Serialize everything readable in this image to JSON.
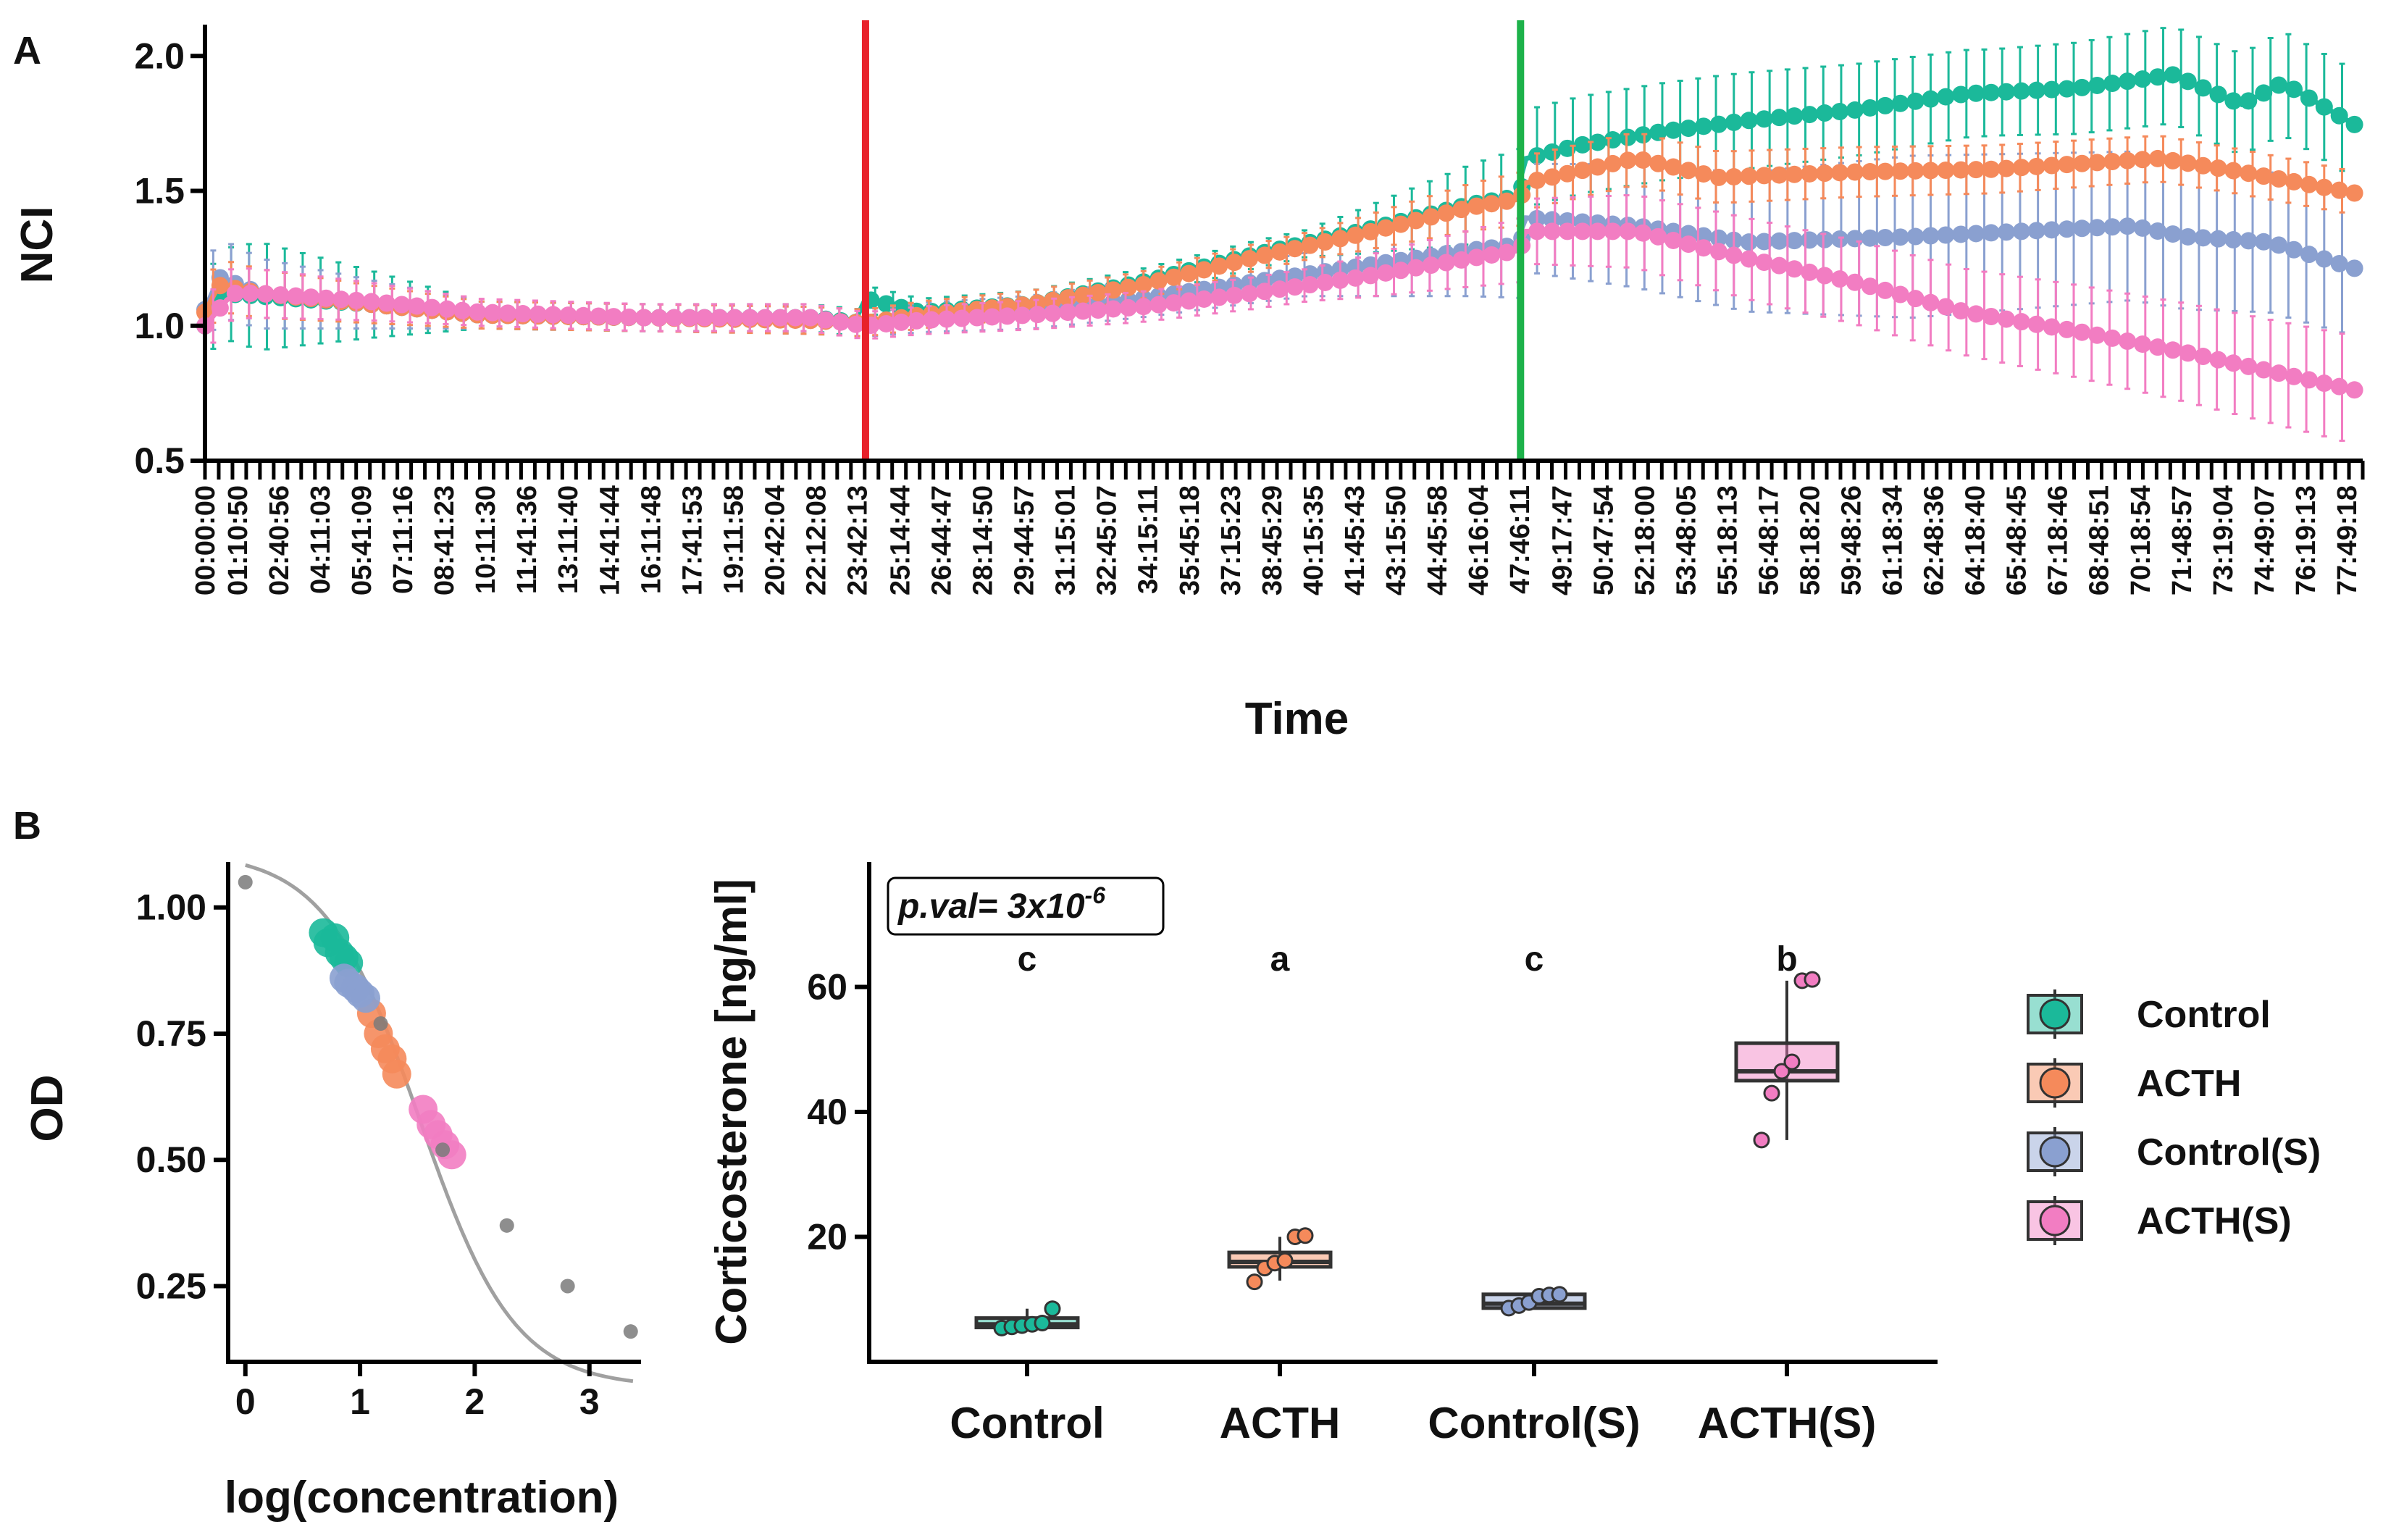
{
  "panel_labels": [
    "A",
    "B"
  ],
  "colors": {
    "Control": "#1bb99a",
    "ACTH": "#f58a5b",
    "Control(S)": "#8aa0d0",
    "ACTH(S)": "#f27dc2",
    "axis": "#000000",
    "treatment_line": "#e8212b",
    "stress_line": "#1db24a",
    "standard": "#7a7a7a",
    "curve": "#a0a0a0"
  },
  "chart_data": [
    {
      "id": "A",
      "type": "line",
      "xlabel": "Time",
      "ylabel": "NCI",
      "ylim": [
        0.5,
        2.1
      ],
      "yticks": [
        0.5,
        1.0,
        1.5,
        2.0
      ],
      "ytick_labels": [
        "0.5",
        "1.0",
        "1.5",
        "2.0"
      ],
      "x_tick_labels": [
        "00:00:00",
        "01:10:50",
        "02:40:56",
        "04:11:03",
        "05:41:09",
        "07:11:16",
        "08:41:23",
        "10:11:30",
        "11:41:36",
        "13:11:40",
        "14:41:44",
        "16:11:48",
        "17:41:53",
        "19:11:58",
        "20:42:04",
        "22:12:08",
        "23:42:13",
        "25:14:44",
        "26:44:47",
        "28:14:50",
        "29:44:57",
        "31:15:01",
        "32:45:07",
        "34:15:11",
        "35:45:18",
        "37:15:23",
        "38:45:29",
        "40:15:35",
        "41:45:43",
        "43:15:50",
        "44:45:58",
        "46:16:04",
        "47:46:11",
        "49:17:47",
        "50:47:54",
        "52:18:00",
        "53:48:05",
        "55:18:13",
        "56:48:17",
        "58:18:20",
        "59:48:26",
        "61:18:34",
        "62:48:36",
        "64:18:40",
        "65:48:45",
        "67:18:46",
        "68:48:51",
        "70:18:54",
        "71:48:57",
        "73:19:04",
        "74:49:07",
        "76:19:13",
        "77:49:18"
      ],
      "x_hours": [
        0,
        1.18,
        2.68,
        4.18,
        5.69,
        7.19,
        8.69,
        10.19,
        11.69,
        13.19,
        14.7,
        16.2,
        17.7,
        19.2,
        20.7,
        22.2,
        23.7,
        25.25,
        26.75,
        28.25,
        29.75,
        31.25,
        32.75,
        34.25,
        35.76,
        37.26,
        38.76,
        40.26,
        41.76,
        43.26,
        44.77,
        46.27,
        47.77,
        49.3,
        50.8,
        52.3,
        53.8,
        55.3,
        56.8,
        58.31,
        59.81,
        61.31,
        62.81,
        64.31,
        65.81,
        67.31,
        68.81,
        70.32,
        71.82,
        73.32,
        74.82,
        76.32,
        77.82
      ],
      "x_range_hours": [
        0,
        78.4
      ],
      "vlines_hours": [
        24.0,
        47.8
      ],
      "series": [
        {
          "name": "Control",
          "points": [
            [
              0,
              1.0
            ],
            [
              0.5,
              1.12
            ],
            [
              2,
              1.11
            ],
            [
              6,
              1.08
            ],
            [
              10,
              1.04
            ],
            [
              16,
              1.03
            ],
            [
              22,
              1.03
            ],
            [
              23.9,
              1.01
            ],
            [
              24,
              1.1
            ],
            [
              26,
              1.05
            ],
            [
              30,
              1.08
            ],
            [
              34,
              1.16
            ],
            [
              38,
              1.26
            ],
            [
              42,
              1.35
            ],
            [
              46,
              1.45
            ],
            [
              47.8,
              1.48
            ],
            [
              48,
              1.62
            ],
            [
              50,
              1.67
            ],
            [
              53,
              1.72
            ],
            [
              56,
              1.76
            ],
            [
              60,
              1.8
            ],
            [
              64,
              1.86
            ],
            [
              68,
              1.88
            ],
            [
              71.5,
              1.93
            ],
            [
              74,
              1.82
            ],
            [
              75.5,
              1.9
            ],
            [
              78.2,
              1.74
            ]
          ],
          "err": [
            [
              0,
              0.15
            ],
            [
              2,
              0.2
            ],
            [
              10,
              0.05
            ],
            [
              24,
              0.05
            ],
            [
              40,
              0.05
            ],
            [
              48,
              0.18
            ],
            [
              55,
              0.18
            ],
            [
              65,
              0.16
            ],
            [
              78.2,
              0.2
            ]
          ]
        },
        {
          "name": "ACTH",
          "points": [
            [
              0,
              1.05
            ],
            [
              0.5,
              1.15
            ],
            [
              2,
              1.12
            ],
            [
              6,
              1.08
            ],
            [
              10,
              1.04
            ],
            [
              16,
              1.03
            ],
            [
              22,
              1.02
            ],
            [
              24,
              1.01
            ],
            [
              26,
              1.04
            ],
            [
              30,
              1.08
            ],
            [
              34,
              1.15
            ],
            [
              38,
              1.25
            ],
            [
              42,
              1.34
            ],
            [
              46,
              1.44
            ],
            [
              47.8,
              1.47
            ],
            [
              48,
              1.53
            ],
            [
              52,
              1.62
            ],
            [
              55,
              1.55
            ],
            [
              60,
              1.57
            ],
            [
              65,
              1.58
            ],
            [
              71,
              1.62
            ],
            [
              74,
              1.57
            ],
            [
              78.2,
              1.49
            ]
          ],
          "err": [
            [
              0,
              0.1
            ],
            [
              10,
              0.05
            ],
            [
              24,
              0.05
            ],
            [
              40,
              0.05
            ],
            [
              48,
              0.1
            ],
            [
              78.2,
              0.08
            ]
          ]
        },
        {
          "name": "Control(S)",
          "points": [
            [
              0,
              1.06
            ],
            [
              0.5,
              1.18
            ],
            [
              2,
              1.12
            ],
            [
              6,
              1.08
            ],
            [
              10,
              1.04
            ],
            [
              16,
              1.03
            ],
            [
              22,
              1.02
            ],
            [
              24,
              1.01
            ],
            [
              26,
              1.03
            ],
            [
              30,
              1.05
            ],
            [
              34,
              1.1
            ],
            [
              38,
              1.16
            ],
            [
              42,
              1.22
            ],
            [
              46,
              1.28
            ],
            [
              47.8,
              1.3
            ],
            [
              48,
              1.4
            ],
            [
              52,
              1.37
            ],
            [
              56,
              1.31
            ],
            [
              62,
              1.33
            ],
            [
              70,
              1.37
            ],
            [
              72,
              1.33
            ],
            [
              75,
              1.31
            ],
            [
              78.2,
              1.21
            ]
          ],
          "err": [
            [
              0,
              0.15
            ],
            [
              10,
              0.05
            ],
            [
              24,
              0.05
            ],
            [
              40,
              0.08
            ],
            [
              48,
              0.2
            ],
            [
              55,
              0.25
            ],
            [
              62,
              0.3
            ],
            [
              78.2,
              0.25
            ]
          ]
        },
        {
          "name": "ACTH(S)",
          "points": [
            [
              0,
              1.0
            ],
            [
              1,
              1.12
            ],
            [
              2,
              1.12
            ],
            [
              6,
              1.09
            ],
            [
              10,
              1.05
            ],
            [
              16,
              1.03
            ],
            [
              22,
              1.03
            ],
            [
              24,
              1.0
            ],
            [
              26,
              1.02
            ],
            [
              30,
              1.04
            ],
            [
              34,
              1.07
            ],
            [
              38,
              1.12
            ],
            [
              42,
              1.18
            ],
            [
              46,
              1.25
            ],
            [
              47.8,
              1.28
            ],
            [
              48,
              1.35
            ],
            [
              52,
              1.35
            ],
            [
              56,
              1.25
            ],
            [
              60,
              1.16
            ],
            [
              64,
              1.05
            ],
            [
              68,
              0.98
            ],
            [
              72,
              0.9
            ],
            [
              78.2,
              0.76
            ]
          ],
          "err": [
            [
              0,
              0.1
            ],
            [
              10,
              0.05
            ],
            [
              24,
              0.05
            ],
            [
              40,
              0.06
            ],
            [
              48,
              0.12
            ],
            [
              56,
              0.15
            ],
            [
              64,
              0.16
            ],
            [
              78.2,
              0.2
            ]
          ]
        }
      ]
    },
    {
      "id": "B-left",
      "type": "scatter",
      "xlabel": "log(concentration)",
      "ylabel": "OD",
      "xlim": [
        -0.15,
        3.45
      ],
      "ylim": [
        0.1,
        1.09
      ],
      "xticks": [
        0,
        1,
        2,
        3
      ],
      "xtick_labels": [
        "0",
        "1",
        "2",
        "3"
      ],
      "yticks": [
        0.25,
        0.5,
        0.75,
        1.0
      ],
      "ytick_labels": [
        "0.25",
        "0.50",
        "0.75",
        "1.00"
      ],
      "standards": [
        [
          0,
          1.05
        ],
        [
          1.18,
          0.77
        ],
        [
          1.72,
          0.52
        ],
        [
          2.28,
          0.37
        ],
        [
          2.81,
          0.25
        ],
        [
          3.36,
          0.16
        ]
      ],
      "fit_curve": {
        "type": "4PL",
        "top": 1.11,
        "bottom": 0.05,
        "ec50_log": 1.52,
        "hill": 1.05
      },
      "sample_points": [
        {
          "group": "Control",
          "points": [
            [
              0.68,
              0.95
            ],
            [
              0.72,
              0.93
            ],
            [
              0.78,
              0.94
            ],
            [
              0.82,
              0.91
            ],
            [
              0.86,
              0.9
            ],
            [
              0.9,
              0.89
            ]
          ]
        },
        {
          "group": "ACTH",
          "points": [
            [
              1.1,
              0.79
            ],
            [
              1.16,
              0.75
            ],
            [
              1.22,
              0.72
            ],
            [
              1.28,
              0.7
            ],
            [
              1.32,
              0.67
            ]
          ]
        },
        {
          "group": "Control(S)",
          "points": [
            [
              0.86,
              0.86
            ],
            [
              0.9,
              0.85
            ],
            [
              0.96,
              0.84
            ],
            [
              1.0,
              0.83
            ],
            [
              1.05,
              0.82
            ]
          ]
        },
        {
          "group": "ACTH(S)",
          "points": [
            [
              1.55,
              0.6
            ],
            [
              1.62,
              0.57
            ],
            [
              1.68,
              0.55
            ],
            [
              1.74,
              0.53
            ],
            [
              1.8,
              0.51
            ]
          ]
        }
      ]
    },
    {
      "id": "B-right",
      "type": "box",
      "ylabel": "Corticosterone [ng/ml]",
      "categories": [
        "Control",
        "ACTH",
        "Control(S)",
        "ACTH(S)"
      ],
      "ylim": [
        0,
        80
      ],
      "yticks": [
        20,
        40,
        60
      ],
      "ytick_labels": [
        "20",
        "40",
        "60"
      ],
      "annotation_prefix": "p.val= 3x10",
      "annotation_exponent": "-6",
      "significance_letters": [
        "c",
        "a",
        "c",
        "b"
      ],
      "boxes": [
        {
          "name": "Control",
          "q1": 5.5,
          "median": 6.0,
          "q3": 7.0,
          "whisker_low": 5.2,
          "whisker_high": 8.5,
          "points": [
            5.4,
            5.6,
            5.8,
            6.0,
            6.2,
            8.5
          ]
        },
        {
          "name": "ACTH",
          "q1": 15.2,
          "median": 16.0,
          "q3": 17.5,
          "whisker_low": 13.0,
          "whisker_high": 20.0,
          "points": [
            12.8,
            15.0,
            15.8,
            16.2,
            20.0,
            20.2
          ]
        },
        {
          "name": "Control(S)",
          "q1": 8.6,
          "median": 9.3,
          "q3": 10.8,
          "whisker_low": 8.5,
          "whisker_high": 10.9,
          "points": [
            8.6,
            9.0,
            9.5,
            10.5,
            10.7,
            10.8
          ]
        },
        {
          "name": "ACTH(S)",
          "q1": 45.0,
          "median": 46.5,
          "q3": 51.0,
          "whisker_low": 35.5,
          "whisker_high": 61.0,
          "points": [
            35.5,
            43.0,
            46.5,
            48.0,
            61.0,
            61.2
          ]
        }
      ],
      "legend": [
        "Control",
        "ACTH",
        "Control(S)",
        "ACTH(S)"
      ]
    }
  ]
}
